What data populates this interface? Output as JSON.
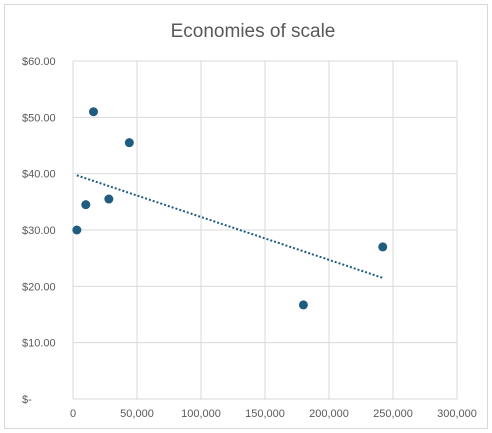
{
  "chart_data": {
    "type": "scatter",
    "title": "Economies of scale",
    "xlabel": "",
    "ylabel": "",
    "xlim": [
      0,
      300000
    ],
    "ylim": [
      0,
      60
    ],
    "x_ticks": [
      0,
      50000,
      100000,
      150000,
      200000,
      250000,
      300000
    ],
    "x_tick_labels": [
      "0",
      "50,000",
      "100,000",
      "150,000",
      "200,000",
      "250,000",
      "300,000"
    ],
    "y_ticks": [
      0,
      10,
      20,
      30,
      40,
      50,
      60
    ],
    "y_tick_labels": [
      "$-",
      "$10.00",
      "$20.00",
      "$30.00",
      "$40.00",
      "$50.00",
      "$60.00"
    ],
    "grid": true,
    "legend": "none",
    "series": [
      {
        "points": [
          {
            "x": 3000,
            "y": 30.0
          },
          {
            "x": 10000,
            "y": 34.5
          },
          {
            "x": 16000,
            "y": 51.0
          },
          {
            "x": 28000,
            "y": 35.5
          },
          {
            "x": 44000,
            "y": 45.5
          },
          {
            "x": 180000,
            "y": 16.7
          },
          {
            "x": 242000,
            "y": 27.0
          }
        ],
        "color": "#1f5c7f"
      }
    ],
    "trendline": {
      "type": "linear",
      "style": "dotted",
      "color": "#1f5c7f",
      "x_start": 3000,
      "y_start": 39.7,
      "x_end": 242000,
      "y_end": 21.5
    }
  }
}
